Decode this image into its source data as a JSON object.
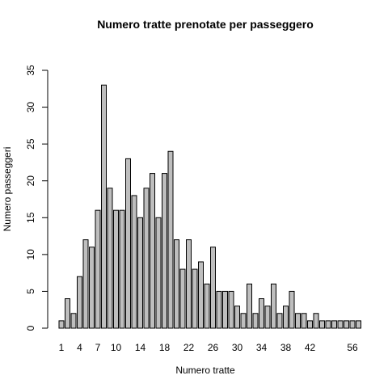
{
  "chart_data": {
    "type": "bar",
    "title": "Numero tratte prenotate per passeggero",
    "xlabel": "Numero tratte",
    "ylabel": "Numero passeggeri",
    "ylim": [
      0,
      35
    ],
    "y_ticks": [
      0,
      5,
      10,
      15,
      20,
      25,
      30,
      35
    ],
    "bar_color": "#bebebe",
    "categories": [
      "1",
      "2",
      "3",
      "4",
      "5",
      "6",
      "7",
      "8",
      "9",
      "10",
      "11",
      "12",
      "13",
      "14",
      "15",
      "16",
      "17",
      "18",
      "19",
      "20",
      "21",
      "22",
      "23",
      "24",
      "25",
      "26",
      "27",
      "28",
      "29",
      "30",
      "31",
      "32",
      "33",
      "34",
      "35",
      "36",
      "37",
      "38",
      "39",
      "40",
      "41",
      "42",
      "43",
      "44",
      "45",
      "46",
      "47",
      "48",
      "56",
      "58"
    ],
    "values": [
      1,
      4,
      2,
      7,
      12,
      11,
      16,
      33,
      19,
      16,
      16,
      23,
      18,
      15,
      19,
      21,
      15,
      21,
      24,
      12,
      8,
      12,
      8,
      9,
      6,
      11,
      5,
      5,
      5,
      3,
      2,
      6,
      2,
      4,
      3,
      6,
      2,
      3,
      5,
      2,
      2,
      1,
      2,
      1,
      1,
      1,
      1,
      1,
      1,
      1
    ],
    "x_tick_labels": [
      "1",
      "4",
      "7",
      "10",
      "14",
      "18",
      "22",
      "26",
      "30",
      "34",
      "38",
      "42",
      "56"
    ]
  }
}
